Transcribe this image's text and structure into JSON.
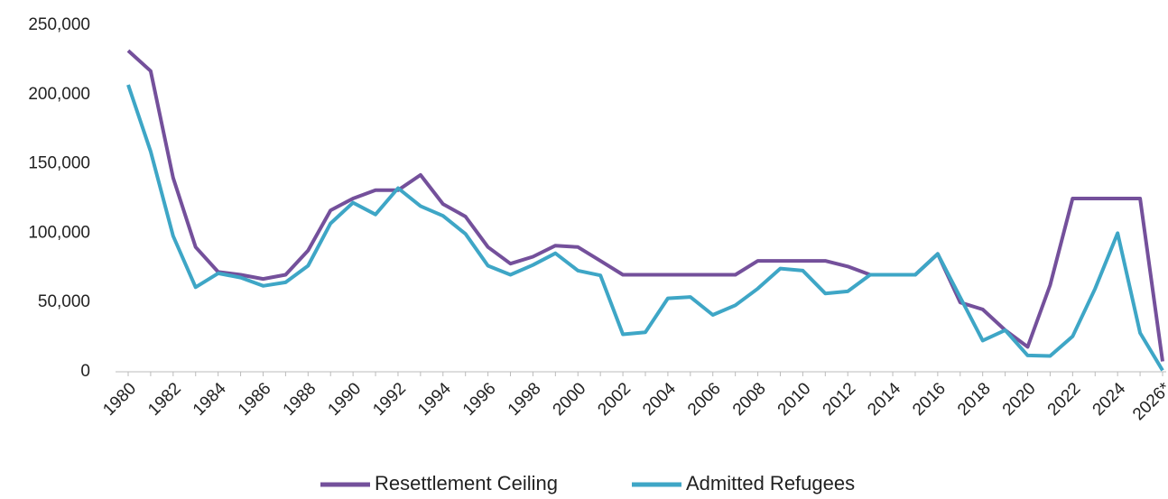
{
  "chart_data": {
    "type": "line",
    "categories": [
      "1980",
      null,
      "1982",
      null,
      "1984",
      null,
      "1986",
      null,
      "1988",
      null,
      "1990",
      null,
      "1992",
      null,
      "1994",
      null,
      "1996",
      null,
      "1998",
      null,
      "2000",
      null,
      "2002",
      null,
      "2004",
      null,
      "2006",
      null,
      "2008",
      null,
      "2010",
      null,
      "2012",
      null,
      "2014",
      null,
      "2016",
      null,
      "2018",
      null,
      "2020",
      null,
      "2022",
      null,
      "2024",
      null,
      "2026*"
    ],
    "series": [
      {
        "name": "Resettlement Ceiling",
        "color": "#74509b",
        "values": [
          231700,
          217000,
          140000,
          90000,
          72000,
          70000,
          67000,
          70000,
          87500,
          116500,
          125000,
          131000,
          131000,
          142000,
          121000,
          112000,
          90000,
          78000,
          83000,
          91000,
          90000,
          80000,
          70000,
          70000,
          70000,
          70000,
          70000,
          70000,
          80000,
          80000,
          80000,
          80000,
          76000,
          70000,
          70000,
          70000,
          85000,
          50000,
          45000,
          30000,
          18000,
          62500,
          125000,
          125000,
          125000,
          125000,
          7500
        ]
      },
      {
        "name": "Admitted Refugees",
        "color": "#3ea6c6",
        "values": [
          207000,
          159000,
          98000,
          61000,
          71000,
          68000,
          62000,
          64500,
          76500,
          107000,
          122000,
          113500,
          132500,
          119500,
          112500,
          99500,
          76500,
          70000,
          77000,
          85500,
          73000,
          69500,
          27000,
          28500,
          53000,
          54000,
          41000,
          48000,
          60000,
          74500,
          73000,
          56500,
          58000,
          70000,
          70000,
          70000,
          85000,
          53700,
          22500,
          30000,
          11800,
          11400,
          25500,
          60000,
          100000,
          28000,
          1000
        ]
      }
    ],
    "ylim": [
      0,
      250000
    ],
    "yticks": [
      0,
      {
        "value": 50000,
        "label": "50,000"
      },
      {
        "value": 100000,
        "label": "100,000"
      },
      {
        "value": 150000,
        "label": "150,000"
      },
      {
        "value": 200000,
        "label": "200,000"
      },
      {
        "value": 250000,
        "label": "250,000"
      }
    ],
    "grid": false,
    "legend": "bottom"
  }
}
